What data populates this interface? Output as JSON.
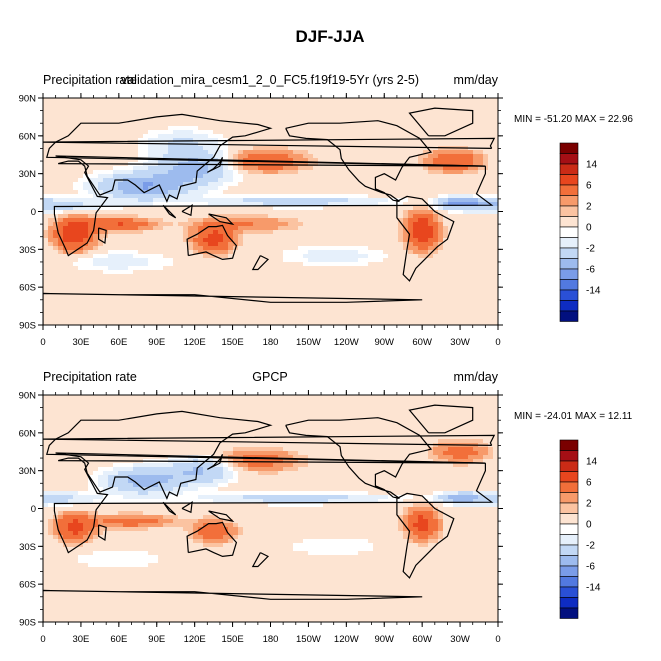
{
  "figure": {
    "title": "DJF-JJA"
  },
  "chart_data": [
    {
      "type": "heatmap",
      "variable_label": "Precipitation rate",
      "title": "validation_mira_cesm1_2_0_FC5.f19f19-5Yr (yrs 2-5)",
      "units": "mm/day",
      "stats": "MIN = -51.20 MAX =  22.96",
      "x_ticklabels": [
        "0",
        "30E",
        "60E",
        "90E",
        "120E",
        "150E",
        "180",
        "150W",
        "120W",
        "90W",
        "60W",
        "30W",
        "0"
      ],
      "y_ticklabels": [
        "90N",
        "60N",
        "30N",
        "0",
        "30S",
        "60S",
        "90S"
      ],
      "colorbar_ticklabels": [
        "14",
        "6",
        "2",
        "0",
        "-2",
        "-6",
        "-14"
      ],
      "xlim": [
        0,
        360
      ],
      "ylim": [
        -90,
        90
      ],
      "grid": false
    },
    {
      "type": "heatmap",
      "variable_label": "Precipitation rate",
      "title": "GPCP",
      "units": "mm/day",
      "stats": "MIN = -24.01 MAX =  12.11",
      "x_ticklabels": [
        "0",
        "30E",
        "60E",
        "90E",
        "120E",
        "150E",
        "180",
        "150W",
        "120W",
        "90W",
        "60W",
        "30W",
        "0"
      ],
      "y_ticklabels": [
        "90N",
        "60N",
        "30N",
        "0",
        "30S",
        "60S",
        "90S"
      ],
      "colorbar_ticklabels": [
        "14",
        "6",
        "2",
        "0",
        "-2",
        "-6",
        "-14"
      ],
      "xlim": [
        0,
        360
      ],
      "ylim": [
        -90,
        90
      ],
      "grid": false
    }
  ],
  "colors": {
    "colorbar": [
      "#7a0000",
      "#a50f15",
      "#cb2b16",
      "#e8461e",
      "#f26f3a",
      "#f79a6a",
      "#fbc3a1",
      "#fde4d2",
      "#ffffff",
      "#e6f0fb",
      "#c2d8f5",
      "#9dbbee",
      "#7a9ce8",
      "#5279e0",
      "#2a50d6",
      "#0e2cc2",
      "#02107f"
    ],
    "land_outline": "#000000"
  }
}
